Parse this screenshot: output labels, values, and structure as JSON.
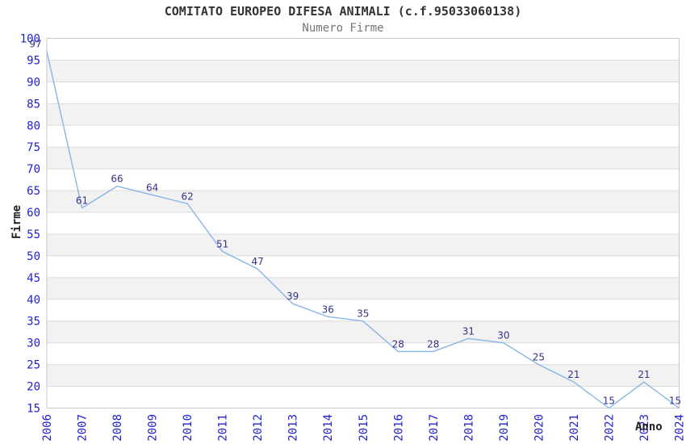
{
  "chart_data": {
    "type": "line",
    "title": "COMITATO EUROPEO DIFESA ANIMALI (c.f.95033060138)",
    "subtitle": "Numero Firme",
    "xlabel": "Anno",
    "ylabel": "Firme",
    "categories": [
      "2006",
      "2007",
      "2008",
      "2009",
      "2010",
      "2011",
      "2012",
      "2013",
      "2014",
      "2015",
      "2016",
      "2017",
      "2018",
      "2019",
      "2020",
      "2021",
      "2022",
      "2023",
      "2024"
    ],
    "series": [
      {
        "name": "Numero Firme",
        "values": [
          97,
          61,
          66,
          64,
          62,
          51,
          47,
          39,
          36,
          35,
          28,
          28,
          31,
          30,
          25,
          21,
          15,
          21,
          15
        ]
      }
    ],
    "ylim": [
      15,
      100
    ],
    "ytick_step": 5,
    "yticks": [
      100,
      95,
      90,
      85,
      80,
      75,
      70,
      65,
      60,
      55,
      50,
      45,
      40,
      35,
      30,
      25,
      20,
      15
    ],
    "grid": "horizontal-bands",
    "legend": "none",
    "show_point_labels": true,
    "colors": {
      "line": "#8ab4e6",
      "point_label": "#333388",
      "tick_label": "#2222cc",
      "title": "#333333",
      "subtitle": "#757575",
      "axis_title": "#222222",
      "band_alt": "#f2f2f2",
      "band_main": "#ffffff",
      "gridline": "#dcdcdc",
      "plot_border": "#c8c8c8",
      "background": "#ffffff"
    }
  }
}
